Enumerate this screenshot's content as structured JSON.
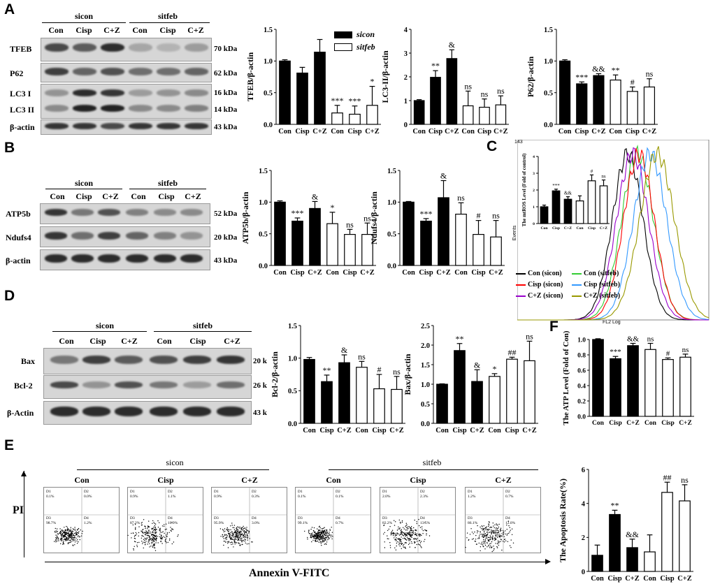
{
  "panels": {
    "A": "A",
    "B": "B",
    "C": "C",
    "D": "D",
    "E": "E",
    "F": "F"
  },
  "groups": {
    "sicon": "sicon",
    "sitfeb": "sitfeb"
  },
  "lanes": [
    "Con",
    "Cisp",
    "C+Z",
    "Con",
    "Cisp",
    "C+Z"
  ],
  "blots": {
    "A": {
      "rows": [
        {
          "label": "TFEB",
          "kda": "70 kDa"
        },
        {
          "label": "P62",
          "kda": "62 kDa"
        },
        {
          "label": "LC3 I",
          "kda": "16 kDa"
        },
        {
          "label": "LC3 II",
          "kda": "14 kDa"
        },
        {
          "label": "β-actin",
          "kda": "43 kDa"
        }
      ]
    },
    "B": {
      "rows": [
        {
          "label": "ATP5b",
          "kda": "52 kDa"
        },
        {
          "label": "Ndufs4",
          "kda": "20 kDa"
        },
        {
          "label": "β-actin",
          "kda": "43 kDa"
        }
      ]
    },
    "D": {
      "rows": [
        {
          "label": "Bax",
          "kda": "20 k"
        },
        {
          "label": "Bcl-2",
          "kda": "26 k"
        },
        {
          "label": "β-Actin",
          "kda": "43 k"
        }
      ]
    }
  },
  "legend_A": {
    "sicon": "sicon",
    "sitfeb": "sitfeb"
  },
  "flow_C": {
    "ymax_label": "143",
    "ylabel": "Events",
    "xlabel": "FL2 Log",
    "legend": [
      {
        "name": "Con (sicon)",
        "color": "#000000"
      },
      {
        "name": "Con (sitfeb)",
        "color": "#33cc33"
      },
      {
        "name": "Cisp (sicon)",
        "color": "#ff0000"
      },
      {
        "name": "Cisp (sitfeb)",
        "color": "#3399ff"
      },
      {
        "name": "C+Z (sicon)",
        "color": "#9900cc"
      },
      {
        "name": "C+Z (sitfeb)",
        "color": "#999900"
      }
    ]
  },
  "facs_E": {
    "ylabel": "PI",
    "xlabel": "Annexin V-FITC",
    "plots": [
      {
        "lane": "Con",
        "D1": "0.1%",
        "D2": "0.0%",
        "D3": "98.7%",
        "D4": "1.2%"
      },
      {
        "lane": "Cisp",
        "D1": "0.9%",
        "D2": "1.1%",
        "D3": "87.2%",
        "D4": "10.9%"
      },
      {
        "lane": "C+Z",
        "D1": "0.9%",
        "D2": "0.3%",
        "D3": "95.9%",
        "D4": "3.0%"
      },
      {
        "lane": "Con",
        "D1": "0.1%",
        "D2": "0.1%",
        "D3": "99.1%",
        "D4": "0.7%"
      },
      {
        "lane": "Cisp",
        "D1": "2.0%",
        "D2": "2.3%",
        "D3": "82.2%",
        "D4": "13.5%"
      },
      {
        "lane": "C+Z",
        "D1": "1.2%",
        "D2": "0.7%",
        "D3": "86.1%",
        "D4": "12.0%"
      }
    ]
  },
  "chart_data": [
    {
      "id": "A-TFEB",
      "type": "bar",
      "categories": [
        "Con",
        "Cisp",
        "C+Z",
        "Con",
        "Cisp",
        "C+Z"
      ],
      "values": [
        1.0,
        0.81,
        1.14,
        0.18,
        0.16,
        0.3
      ],
      "errors": [
        0.02,
        0.09,
        0.2,
        0.12,
        0.13,
        0.3
      ],
      "ylabel": "TFEB/β-actin",
      "ylim": [
        0,
        1.5
      ],
      "yticks": [
        "0.0",
        "0.5",
        "1.0",
        "1.5"
      ],
      "annotations": [
        "",
        "",
        "",
        "***",
        "***",
        "*"
      ]
    },
    {
      "id": "A-LC3",
      "type": "bar",
      "categories": [
        "Con",
        "Cisp",
        "C+Z",
        "Con",
        "Cisp",
        "C+Z"
      ],
      "values": [
        1.0,
        1.98,
        2.77,
        0.78,
        0.72,
        0.82
      ],
      "errors": [
        0.04,
        0.28,
        0.37,
        0.62,
        0.35,
        0.38
      ],
      "ylabel": "LC3-II/β-actin",
      "ylim": [
        0,
        4
      ],
      "yticks": [
        "0",
        "1",
        "2",
        "3",
        "4"
      ],
      "annotations": [
        "",
        "**",
        "&",
        "ns",
        "ns",
        "ns"
      ]
    },
    {
      "id": "A-P62",
      "type": "bar",
      "categories": [
        "Con",
        "Cisp",
        "C+Z",
        "Con",
        "Cisp",
        "C+Z"
      ],
      "values": [
        1.0,
        0.64,
        0.77,
        0.7,
        0.52,
        0.59
      ],
      "errors": [
        0.02,
        0.03,
        0.03,
        0.08,
        0.07,
        0.13
      ],
      "ylabel": "P62/β-actin",
      "ylim": [
        0,
        1.5
      ],
      "yticks": [
        "0.0",
        "0.5",
        "1.0",
        "1.5"
      ],
      "annotations": [
        "",
        "***",
        "&&",
        "**",
        "#",
        "ns"
      ]
    },
    {
      "id": "B-ATP5b",
      "type": "bar",
      "categories": [
        "Con",
        "Cisp",
        "C+Z",
        "Con",
        "Cisp",
        "C+Z"
      ],
      "values": [
        1.0,
        0.7,
        0.9,
        0.66,
        0.49,
        0.49
      ],
      "errors": [
        0.02,
        0.05,
        0.11,
        0.18,
        0.08,
        0.18
      ],
      "ylabel": "ATP5b/β-actin",
      "ylim": [
        0,
        1.5
      ],
      "yticks": [
        "0.0",
        "0.5",
        "1.0",
        "1.5"
      ],
      "annotations": [
        "",
        "***",
        "&",
        "*",
        "ns",
        "ns"
      ]
    },
    {
      "id": "B-Ndufs4",
      "type": "bar",
      "categories": [
        "Con",
        "Cisp",
        "C+Z",
        "Con",
        "Cisp",
        "C+Z"
      ],
      "values": [
        1.0,
        0.7,
        1.07,
        0.81,
        0.49,
        0.45
      ],
      "errors": [
        0.01,
        0.04,
        0.27,
        0.18,
        0.22,
        0.26
      ],
      "ylabel": "Ndufs4/β-actin",
      "ylim": [
        0,
        1.5
      ],
      "yticks": [
        "0.0",
        "0.5",
        "1.0",
        "1.5"
      ],
      "annotations": [
        "",
        "***",
        "&",
        "ns",
        "#",
        "ns"
      ]
    },
    {
      "id": "C-ROS",
      "type": "bar",
      "categories": [
        "Con",
        "Cisp",
        "C+Z",
        "Con",
        "Cisp",
        "C+Z"
      ],
      "values": [
        1.0,
        1.95,
        1.45,
        1.35,
        2.55,
        2.25
      ],
      "errors": [
        0.1,
        0.1,
        0.15,
        0.3,
        0.35,
        0.35
      ],
      "ylabel": "The mtROS Level (Fold of control)",
      "ylim": [
        0,
        4
      ],
      "yticks": [
        "0",
        "1",
        "2",
        "3",
        "4"
      ],
      "annotations": [
        "",
        "***",
        "&&",
        "",
        "#",
        "ns"
      ]
    },
    {
      "id": "D-Bcl2",
      "type": "bar",
      "categories": [
        "Con",
        "Cisp",
        "C+Z",
        "Con",
        "Cisp",
        "C+Z"
      ],
      "values": [
        0.98,
        0.64,
        0.93,
        0.86,
        0.53,
        0.52
      ],
      "errors": [
        0.03,
        0.1,
        0.12,
        0.09,
        0.22,
        0.2
      ],
      "ylabel": "Bcl-2/β-actin",
      "ylim": [
        0,
        1.5
      ],
      "yticks": [
        "0.0",
        "0.5",
        "1.0",
        "1.5"
      ],
      "annotations": [
        "",
        "**",
        "&",
        "ns",
        "#",
        "ns"
      ]
    },
    {
      "id": "D-Bax",
      "type": "bar",
      "categories": [
        "Con",
        "Cisp",
        "C+Z",
        "Con",
        "Cisp",
        "C+Z"
      ],
      "values": [
        1.0,
        1.86,
        1.07,
        1.2,
        1.64,
        1.6
      ],
      "errors": [
        0.01,
        0.18,
        0.3,
        0.07,
        0.05,
        0.5
      ],
      "ylabel": "Bax/β-actin",
      "ylim": [
        0,
        2.5
      ],
      "yticks": [
        "0.0",
        "0.5",
        "1.0",
        "1.5",
        "2.0",
        "2.5"
      ],
      "annotations": [
        "",
        "**",
        "&",
        "*",
        "##",
        "ns"
      ]
    },
    {
      "id": "F-ATP",
      "type": "bar",
      "categories": [
        "Con",
        "Cisp",
        "C+Z",
        "Con",
        "Cisp",
        "C+Z"
      ],
      "values": [
        1.0,
        0.75,
        0.92,
        0.87,
        0.74,
        0.77
      ],
      "errors": [
        0.01,
        0.03,
        0.03,
        0.08,
        0.02,
        0.04
      ],
      "ylabel": "The ATP Level (Fold of Con)",
      "ylim": [
        0,
        1.0
      ],
      "yticks": [
        "0.0",
        "0.2",
        "0.4",
        "0.6",
        "0.8",
        "1.0"
      ],
      "annotations": [
        "",
        "***",
        "&&",
        "ns",
        "#",
        "ns"
      ]
    },
    {
      "id": "E-Apoptosis",
      "type": "bar",
      "categories": [
        "Con",
        "Cisp",
        "C+Z",
        "Con",
        "Cisp",
        "C+Z"
      ],
      "values": [
        0.95,
        3.35,
        1.4,
        1.15,
        4.65,
        4.15
      ],
      "errors": [
        0.6,
        0.25,
        0.5,
        1.0,
        0.6,
        0.95
      ],
      "ylabel": "The Apoptosis Rate(%)",
      "ylim": [
        0,
        6
      ],
      "yticks": [
        "0",
        "2",
        "4",
        "6"
      ],
      "annotations": [
        "",
        "**",
        "&&",
        "",
        "##",
        "ns"
      ]
    }
  ]
}
